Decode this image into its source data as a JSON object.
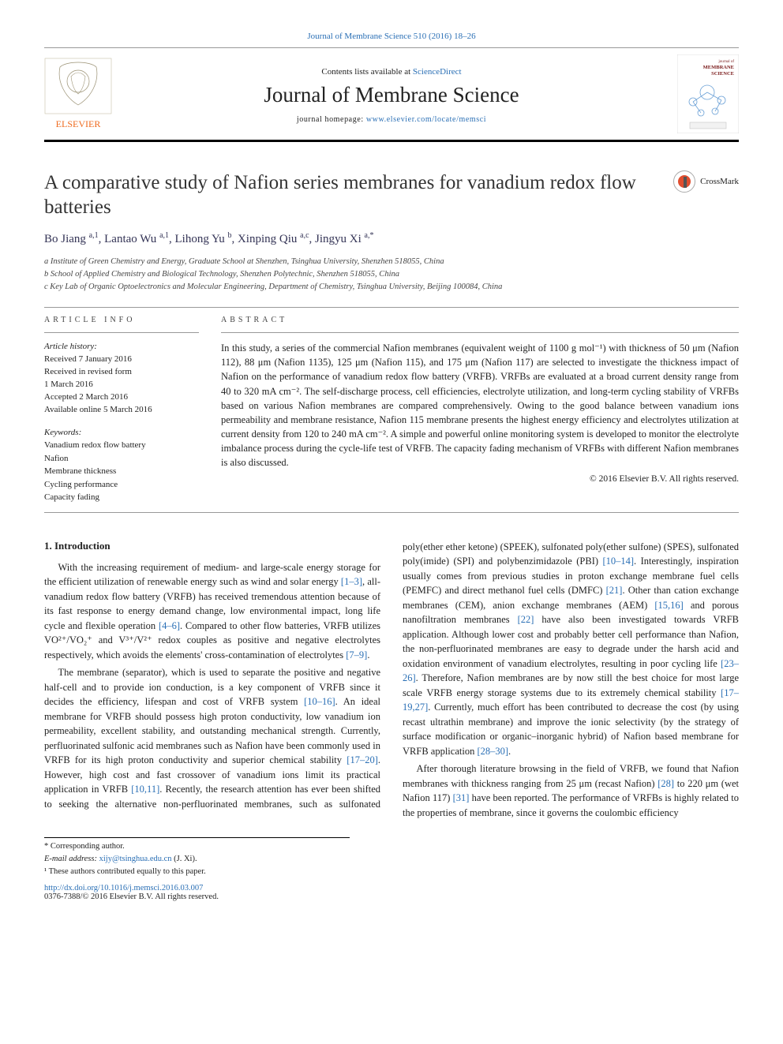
{
  "page": {
    "top_reference": "Journal of Membrane Science 510 (2016) 18–26",
    "contents_prefix": "Contents lists available at ",
    "contents_link": "ScienceDirect",
    "journal_name": "Journal of Membrane Science",
    "homepage_prefix": "journal homepage: ",
    "homepage_link": "www.elsevier.com/locate/memsci",
    "publisher": "ELSEVIER",
    "crossmark_label": "CrossMark",
    "cover_label_top": "journal of",
    "cover_label_mid": "MEMBRANE",
    "cover_label_bot": "SCIENCE"
  },
  "article": {
    "title": "A comparative study of Nafion series membranes for vanadium redox flow batteries",
    "authors_html": "Bo Jiang <sup>a,1</sup>, Lantao Wu <sup>a,1</sup>, Lihong Yu <sup>b</sup>, Xinping Qiu <sup>a,c</sup>, Jingyu Xi <sup>a,*</sup>",
    "affiliations": [
      "a Institute of Green Chemistry and Energy, Graduate School at Shenzhen, Tsinghua University, Shenzhen 518055, China",
      "b School of Applied Chemistry and Biological Technology, Shenzhen Polytechnic, Shenzhen 518055, China",
      "c Key Lab of Organic Optoelectronics and Molecular Engineering, Department of Chemistry, Tsinghua University, Beijing 100084, China"
    ]
  },
  "info": {
    "kicker": "ARTICLE INFO",
    "history_label": "Article history:",
    "history": [
      "Received 7 January 2016",
      "Received in revised form",
      "1 March 2016",
      "Accepted 2 March 2016",
      "Available online 5 March 2016"
    ],
    "keywords_label": "Keywords:",
    "keywords": [
      "Vanadium redox flow battery",
      "Nafion",
      "Membrane thickness",
      "Cycling performance",
      "Capacity fading"
    ]
  },
  "abstract": {
    "kicker": "ABSTRACT",
    "text": "In this study, a series of the commercial Nafion membranes (equivalent weight of 1100 g mol⁻¹) with thickness of 50 μm (Nafion 112), 88 μm (Nafion 1135), 125 μm (Nafion 115), and 175 μm (Nafion 117) are selected to investigate the thickness impact of Nafion on the performance of vanadium redox flow battery (VRFB). VRFBs are evaluated at a broad current density range from 40 to 320 mA cm⁻². The self-discharge process, cell efficiencies, electrolyte utilization, and long-term cycling stability of VRFBs based on various Nafion membranes are compared comprehensively. Owing to the good balance between vanadium ions permeability and membrane resistance, Nafion 115 membrane presents the highest energy efficiency and electrolytes utilization at current density from 120 to 240 mA cm⁻². A simple and powerful online monitoring system is developed to monitor the electrolyte imbalance process during the cycle-life test of VRFB. The capacity fading mechanism of VRFBs with different Nafion membranes is also discussed.",
    "copyright": "© 2016 Elsevier B.V. All rights reserved."
  },
  "body": {
    "heading": "1. Introduction",
    "para1_pre": "With the increasing requirement of medium- and large-scale energy storage for the efficient utilization of renewable energy such as wind and solar energy ",
    "ref1": "[1–3]",
    "para1_mid1": ", all-vanadium redox flow battery (VRFB) has received tremendous attention because of its fast response to energy demand change, low environmental impact, long life cycle and flexible operation ",
    "ref2": "[4–6]",
    "para1_mid2": ". Compared to other flow batteries, VRFB utilizes VO²⁺/VO₂⁺ and V³⁺/V²⁺ redox couples as positive and negative electrolytes respectively, which avoids the elements' cross-contamination of electrolytes ",
    "ref3": "[7–9]",
    "para1_end": ".",
    "para2_pre": "The membrane (separator), which is used to separate the positive and negative half-cell and to provide ion conduction, is a key component of VRFB since it decides the efficiency, lifespan and cost of VRFB system ",
    "ref4": "[10–16]",
    "para2_mid1": ". An ideal membrane for VRFB should possess high proton conductivity, low vanadium ion permeability, excellent stability, and outstanding mechanical strength. Currently, perfluorinated sulfonic acid membranes such as Nafion have been commonly used in VRFB for its high proton conductivity and superior chemical stability ",
    "ref5": "[17–20]",
    "para2_mid2": ". However, high cost and fast crossover of vanadium ions limit its practical application in VRFB ",
    "ref6": "[10,11]",
    "para2_mid3": ". Recently, the research attention has ever been shifted to seeking the alternative non-perfluorinated membranes, such as sulfonated poly(ether ether ketone) (SPEEK), sulfonated poly(ether sulfone) (SPES), sulfonated poly(imide) (SPI) and polybenzimidazole (PBI) ",
    "ref7": "[10–14]",
    "para2_mid4": ". Interestingly, inspiration usually comes from previous studies in proton exchange membrane fuel cells (PEMFC) and direct methanol fuel cells (DMFC) ",
    "ref8": "[21]",
    "para2_mid5": ". Other than cation exchange membranes (CEM), anion exchange membranes (AEM) ",
    "ref9": "[15,16]",
    "para2_mid6": " and porous nanofiltration membranes ",
    "ref10": "[22]",
    "para2_mid7": " have also been investigated towards VRFB application. Although lower cost and probably better cell performance than Nafion, the non-perfluorinated membranes are easy to degrade under the harsh acid and oxidation environment of vanadium electrolytes, resulting in poor cycling life ",
    "ref11": "[23–26]",
    "para2_mid8": ". Therefore, Nafion membranes are by now still the best choice for most large scale VRFB energy storage systems due to its extremely chemical stability ",
    "ref12": "[17–19,27]",
    "para2_mid9": ". Currently, much effort has been contributed to decrease the cost (by using recast ultrathin membrane) and improve the ionic selectivity (by the strategy of surface modification or organic–inorganic hybrid) of Nafion based membrane for VRFB application ",
    "ref13": "[28–30]",
    "para2_end": ".",
    "para3_pre": "After thorough literature browsing in the field of VRFB, we found that Nafion membranes with thickness ranging from 25 μm (recast Nafion) ",
    "ref14": "[28]",
    "para3_mid1": " to 220 μm (wet Nafion 117) ",
    "ref15": "[31]",
    "para3_mid2": " have been reported. The performance of VRFBs is highly related to the properties of membrane, since it governs the coulombic efficiency"
  },
  "footnotes": {
    "corresponding": "* Corresponding author.",
    "email_label": "E-mail address: ",
    "email": "xijy@tsinghua.edu.cn",
    "email_suffix": " (J. Xi).",
    "equal": "¹ These authors contributed equally to this paper.",
    "doi_link": "http://dx.doi.org/10.1016/j.memsci.2016.03.007",
    "issn_line": "0376-7388/© 2016 Elsevier B.V. All rights reserved."
  },
  "colors": {
    "link": "#2a6fb5",
    "text": "#222222",
    "rule": "#999999",
    "elsevier_orange": "#ef6b1f"
  }
}
